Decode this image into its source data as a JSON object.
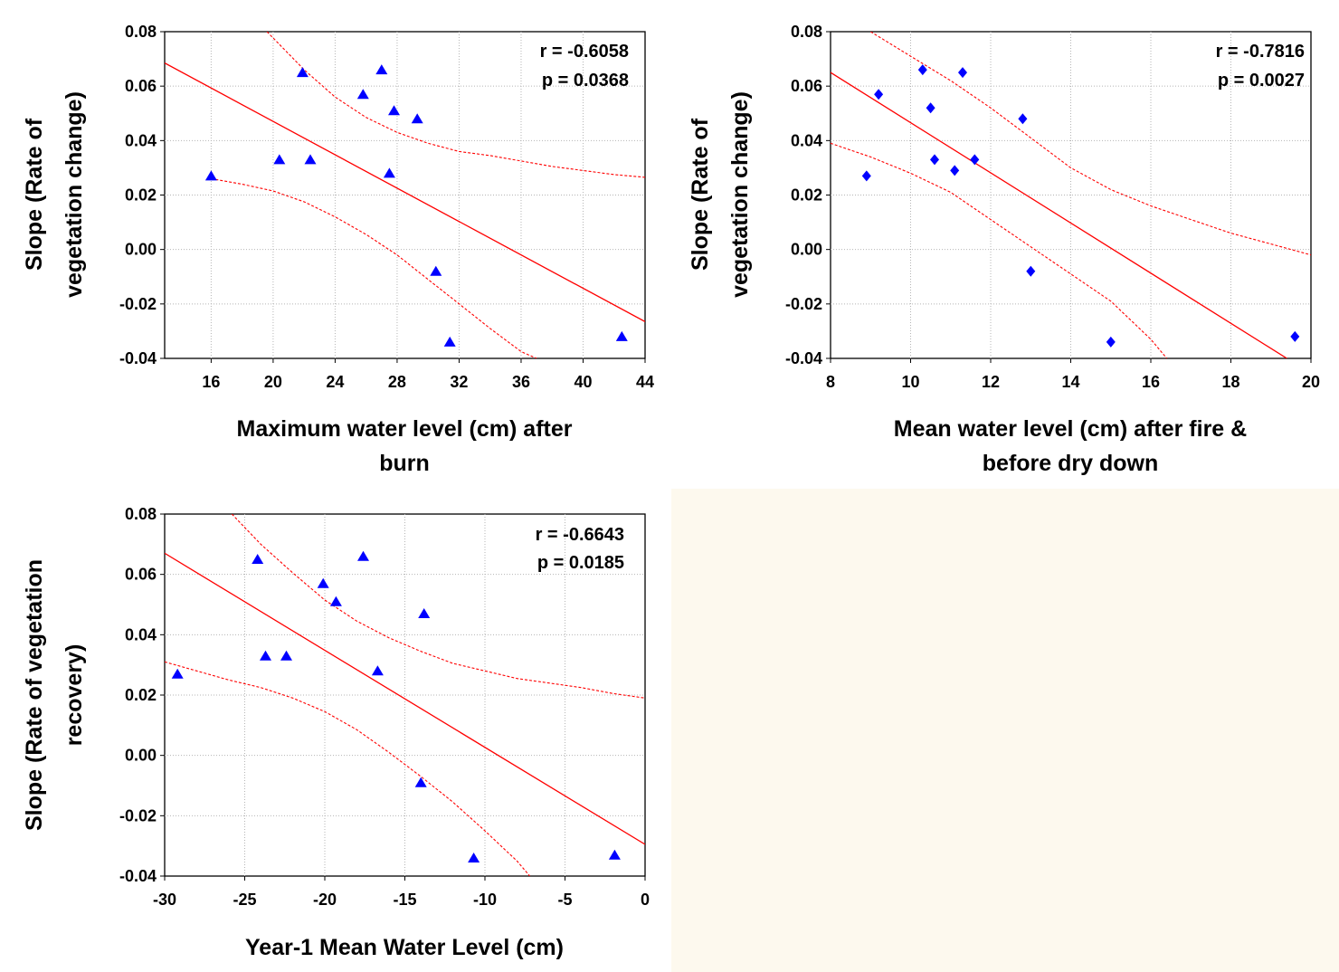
{
  "chart_data": [
    {
      "type": "scatter",
      "title": "",
      "xlabel_lines": [
        "Maximum water level (cm) after",
        "burn"
      ],
      "ylabel_lines": [
        "Slope (Rate of",
        "vegetation change)"
      ],
      "xlim": [
        13,
        44
      ],
      "ylim": [
        -0.04,
        0.08
      ],
      "xticks": [
        16,
        20,
        24,
        28,
        32,
        36,
        40,
        44
      ],
      "xtick_labels": [
        "16",
        "20",
        "24",
        "28",
        "32",
        "36",
        "40",
        "44"
      ],
      "yticks": [
        0.08,
        0.06,
        0.04,
        0.02,
        0.0,
        -0.02,
        -0.04
      ],
      "ytick_labels": [
        "0.08",
        "0.06",
        "0.04",
        "0.02",
        "0.00",
        "-0.02",
        "-0.04"
      ],
      "grid": true,
      "marker": "triangle",
      "marker_color": "#0000ff",
      "points": [
        {
          "x": 16.0,
          "y": 0.027
        },
        {
          "x": 20.4,
          "y": 0.033
        },
        {
          "x": 21.9,
          "y": 0.065
        },
        {
          "x": 22.4,
          "y": 0.033
        },
        {
          "x": 25.8,
          "y": 0.057
        },
        {
          "x": 27.0,
          "y": 0.066
        },
        {
          "x": 27.5,
          "y": 0.028
        },
        {
          "x": 27.8,
          "y": 0.051
        },
        {
          "x": 29.3,
          "y": 0.048
        },
        {
          "x": 30.5,
          "y": -0.008
        },
        {
          "x": 31.4,
          "y": -0.034
        },
        {
          "x": 42.5,
          "y": -0.032
        }
      ],
      "fit_line": [
        [
          13,
          0.0685
        ],
        [
          44,
          -0.0265
        ]
      ],
      "conf_upper": [
        [
          19.6,
          0.08
        ],
        [
          22,
          0.066
        ],
        [
          24,
          0.056
        ],
        [
          26,
          0.0485
        ],
        [
          28,
          0.043
        ],
        [
          30,
          0.039
        ],
        [
          32,
          0.036
        ],
        [
          34,
          0.0345
        ],
        [
          36,
          0.0325
        ],
        [
          38,
          0.0305
        ],
        [
          40,
          0.029
        ],
        [
          42,
          0.0275
        ],
        [
          44,
          0.0265
        ]
      ],
      "conf_lower": [
        [
          16,
          0.026
        ],
        [
          18,
          0.024
        ],
        [
          20,
          0.0215
        ],
        [
          22,
          0.0175
        ],
        [
          24,
          0.012
        ],
        [
          26,
          0.0055
        ],
        [
          28,
          -0.002
        ],
        [
          30,
          -0.011
        ],
        [
          32,
          -0.02
        ],
        [
          34,
          -0.029
        ],
        [
          36,
          -0.0375
        ],
        [
          37,
          -0.04
        ]
      ],
      "line_color": "#ff0000",
      "stats": [
        "r = -0.6058",
        "p = 0.0368"
      ]
    },
    {
      "type": "scatter",
      "title": "",
      "xlabel_lines": [
        "Mean water level (cm) after fire &",
        "before dry down"
      ],
      "ylabel_lines": [
        "Slope (Rate of",
        "vegetation change)"
      ],
      "xlim": [
        8,
        20
      ],
      "ylim": [
        -0.04,
        0.08
      ],
      "xticks": [
        8,
        10,
        12,
        14,
        16,
        18,
        20
      ],
      "xtick_labels": [
        "8",
        "10",
        "12",
        "14",
        "16",
        "18",
        "20"
      ],
      "yticks": [
        0.08,
        0.06,
        0.04,
        0.02,
        0.0,
        -0.02,
        -0.04
      ],
      "ytick_labels": [
        "0.08",
        "0.06",
        "0.04",
        "0.02",
        "0.00",
        "-0.02",
        "-0.04"
      ],
      "grid": true,
      "marker": "diamond",
      "marker_color": "#0000ff",
      "points": [
        {
          "x": 8.9,
          "y": 0.027
        },
        {
          "x": 9.2,
          "y": 0.057
        },
        {
          "x": 10.3,
          "y": 0.066
        },
        {
          "x": 10.5,
          "y": 0.052
        },
        {
          "x": 10.6,
          "y": 0.033
        },
        {
          "x": 11.1,
          "y": 0.029
        },
        {
          "x": 11.3,
          "y": 0.065
        },
        {
          "x": 11.6,
          "y": 0.033
        },
        {
          "x": 12.8,
          "y": 0.048
        },
        {
          "x": 13.0,
          "y": -0.008
        },
        {
          "x": 15.0,
          "y": -0.034
        },
        {
          "x": 19.6,
          "y": -0.032
        }
      ],
      "fit_line": [
        [
          8,
          0.065
        ],
        [
          19.4,
          -0.04
        ]
      ],
      "conf_upper": [
        [
          9.0,
          0.08
        ],
        [
          10,
          0.071
        ],
        [
          11,
          0.062
        ],
        [
          12,
          0.052
        ],
        [
          13,
          0.041
        ],
        [
          14,
          0.03
        ],
        [
          15,
          0.022
        ],
        [
          16,
          0.016
        ],
        [
          17,
          0.011
        ],
        [
          18,
          0.006
        ],
        [
          19,
          0.002
        ],
        [
          20,
          -0.002
        ]
      ],
      "conf_lower": [
        [
          8,
          0.039
        ],
        [
          9,
          0.034
        ],
        [
          10,
          0.028
        ],
        [
          11,
          0.021
        ],
        [
          12,
          0.011
        ],
        [
          13,
          0.001
        ],
        [
          14,
          -0.009
        ],
        [
          15,
          -0.019
        ],
        [
          16,
          -0.033
        ],
        [
          16.4,
          -0.04
        ]
      ],
      "line_color": "#ff0000",
      "stats": [
        "r = -0.7816",
        "p = 0.0027"
      ]
    },
    {
      "type": "scatter",
      "title": "",
      "xlabel_lines": [
        "Year-1 Mean Water Level (cm)"
      ],
      "ylabel_lines": [
        "Slope (Rate of vegetation",
        "recovery)"
      ],
      "xlim": [
        -30,
        0
      ],
      "ylim": [
        -0.04,
        0.08
      ],
      "xticks": [
        -30,
        -25,
        -20,
        -15,
        -10,
        -5,
        0
      ],
      "xtick_labels": [
        "-30",
        "-25",
        "-20",
        "-15",
        "-10",
        "-5",
        "0"
      ],
      "yticks": [
        0.08,
        0.06,
        0.04,
        0.02,
        0.0,
        -0.02,
        -0.04
      ],
      "ytick_labels": [
        "0.08",
        "0.06",
        "0.04",
        "0.02",
        "0.00",
        "-0.02",
        "-0.04"
      ],
      "grid": true,
      "marker": "triangle",
      "marker_color": "#0000ff",
      "points": [
        {
          "x": -29.2,
          "y": 0.027
        },
        {
          "x": -24.2,
          "y": 0.065
        },
        {
          "x": -23.7,
          "y": 0.033
        },
        {
          "x": -22.4,
          "y": 0.033
        },
        {
          "x": -20.1,
          "y": 0.057
        },
        {
          "x": -19.3,
          "y": 0.051
        },
        {
          "x": -17.6,
          "y": 0.066
        },
        {
          "x": -16.7,
          "y": 0.028
        },
        {
          "x": -13.8,
          "y": 0.047
        },
        {
          "x": -14.0,
          "y": -0.009
        },
        {
          "x": -10.7,
          "y": -0.034
        },
        {
          "x": -1.9,
          "y": -0.033
        }
      ],
      "fit_line": [
        [
          -30,
          0.067
        ],
        [
          0,
          -0.0295
        ]
      ],
      "conf_upper": [
        [
          -25.8,
          0.08
        ],
        [
          -24,
          0.07
        ],
        [
          -22,
          0.0605
        ],
        [
          -20,
          0.0515
        ],
        [
          -18,
          0.0445
        ],
        [
          -16,
          0.039
        ],
        [
          -14,
          0.0345
        ],
        [
          -12,
          0.0305
        ],
        [
          -10,
          0.028
        ],
        [
          -8,
          0.0255
        ],
        [
          -6,
          0.024
        ],
        [
          -4,
          0.0225
        ],
        [
          -2,
          0.0205
        ],
        [
          0,
          0.019
        ]
      ],
      "conf_lower": [
        [
          -30,
          0.031
        ],
        [
          -28,
          0.028
        ],
        [
          -26,
          0.025
        ],
        [
          -24,
          0.0225
        ],
        [
          -22,
          0.019
        ],
        [
          -20,
          0.0145
        ],
        [
          -18,
          0.0085
        ],
        [
          -16,
          0.001
        ],
        [
          -14,
          -0.007
        ],
        [
          -12,
          -0.0155
        ],
        [
          -10,
          -0.025
        ],
        [
          -8,
          -0.035
        ],
        [
          -7.2,
          -0.04
        ]
      ],
      "line_color": "#ff0000",
      "stats": [
        "r = -0.6643",
        "p = 0.0185"
      ]
    }
  ]
}
